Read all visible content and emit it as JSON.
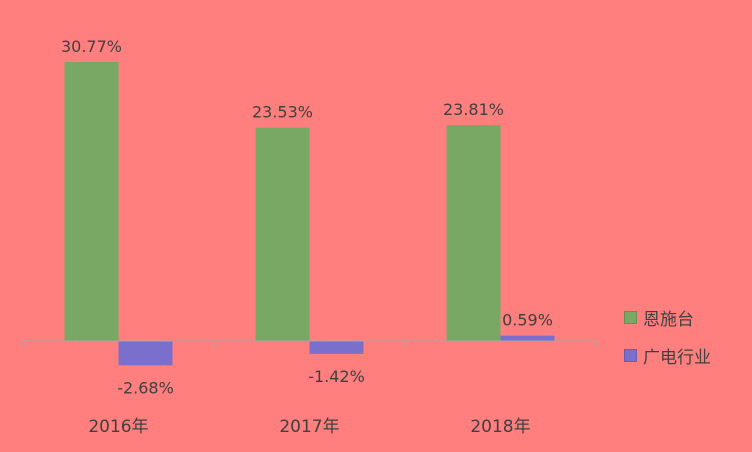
{
  "chart_data": {
    "type": "bar",
    "categories": [
      "2016年",
      "2017年",
      "2018年"
    ],
    "series": [
      {
        "name": "恩施台",
        "values": [
          30.77,
          23.53,
          23.81
        ],
        "labels": [
          "30.77%",
          "23.53%",
          "23.81%"
        ],
        "color": "#79a864"
      },
      {
        "name": "广电行业",
        "values": [
          -2.68,
          -1.42,
          0.59
        ],
        "labels": [
          "-2.68%",
          "-1.42%",
          "0.59%"
        ],
        "color": "#7b6fce"
      }
    ],
    "ylim": [
      -4,
      37
    ],
    "grid": false,
    "legend_position": "right",
    "value_unit": "%"
  },
  "colors": {
    "background": "#ff7f7f",
    "axis": "#a6a6a6",
    "text": "#404040"
  }
}
